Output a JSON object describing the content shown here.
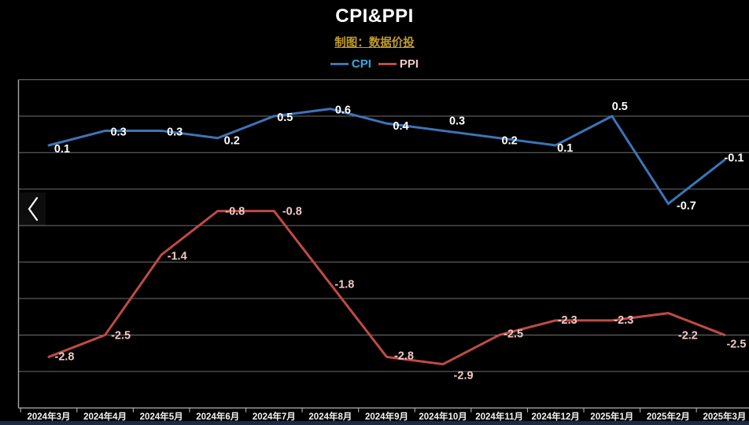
{
  "header": {
    "title": "CPI&PPI",
    "subtitle": "制图：数据价投",
    "subtitle_color": "#C49B2B"
  },
  "legend": {
    "items": [
      {
        "label": "CPI",
        "swatch_color": "#3C74B8",
        "text_color": "#3EA6E0"
      },
      {
        "label": "PPI",
        "swatch_color": "#BE4B45",
        "text_color": "#EFC9C7"
      }
    ]
  },
  "nav": {
    "back_icon": "chevron-left"
  },
  "chart_data": {
    "type": "line",
    "title": "CPI&PPI",
    "categories": [
      "2024年3月",
      "2024年4月",
      "2024年5月",
      "2024年6月",
      "2024年7月",
      "2024年8月",
      "2024年9月",
      "2024年10月",
      "2024年11月",
      "2024年12月",
      "2025年1月",
      "2025年2月",
      "2025年3月"
    ],
    "series": [
      {
        "name": "CPI",
        "color": "#3C74B8",
        "label_color": "#FFFFFF",
        "values": [
          0.1,
          0.3,
          0.3,
          0.2,
          0.5,
          0.6,
          0.4,
          0.3,
          0.2,
          0.1,
          0.5,
          -0.7,
          -0.1
        ]
      },
      {
        "name": "PPI",
        "color": "#BE4B45",
        "label_color": "#EFC9C7",
        "values": [
          -2.8,
          -2.5,
          -1.4,
          -0.8,
          -0.8,
          -1.8,
          -2.8,
          -2.9,
          -2.5,
          -2.3,
          -2.3,
          -2.2,
          -2.5
        ]
      }
    ],
    "ylim": [
      -3.5,
      1.0
    ],
    "grid_step": 0.5,
    "grid": true,
    "y_axis_labels_visible": false,
    "data_labels": true,
    "legend_position": "top",
    "background": "#000000",
    "gridline_color": "#6F6F6F",
    "axis_color": "#A6A6A6",
    "xtick_label_color": "#F2F2F2"
  }
}
